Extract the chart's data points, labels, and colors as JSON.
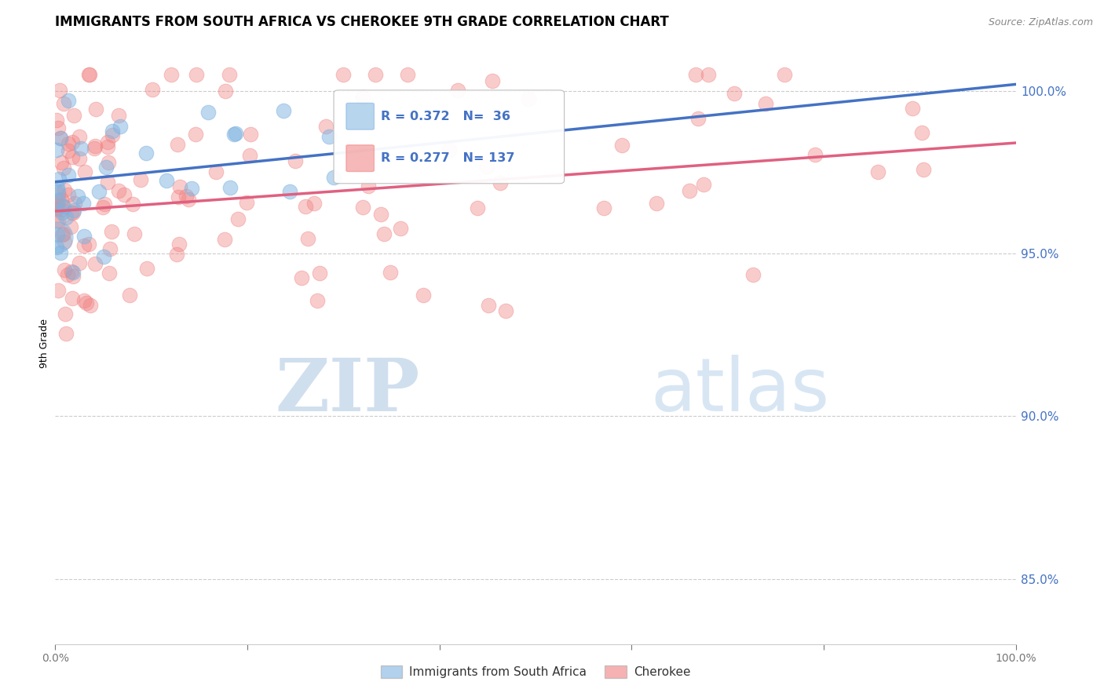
{
  "title": "IMMIGRANTS FROM SOUTH AFRICA VS CHEROKEE 9TH GRADE CORRELATION CHART",
  "source": "Source: ZipAtlas.com",
  "legend1_label": "Immigrants from South Africa",
  "legend2_label": "Cherokee",
  "r1": 0.372,
  "n1": 36,
  "r2": 0.277,
  "n2": 137,
  "blue_color": "#7EB3E0",
  "pink_color": "#F08080",
  "blue_line_color": "#4472C4",
  "pink_line_color": "#E06080",
  "background_color": "#FFFFFF",
  "title_fontsize": 12,
  "axis_label_fontsize": 9,
  "tick_fontsize": 10,
  "legend_fontsize": 11,
  "xlim": [
    0.0,
    1.0
  ],
  "ylim": [
    0.83,
    1.015
  ],
  "right_yticks": [
    0.85,
    0.9,
    0.95,
    1.0
  ],
  "right_ytick_labels": [
    "85.0%",
    "90.0%",
    "95.0%",
    "100.0%"
  ],
  "grid_color": "#CCCCCC",
  "right_tick_color": "#4472C4",
  "ylabel": "9th Grade"
}
